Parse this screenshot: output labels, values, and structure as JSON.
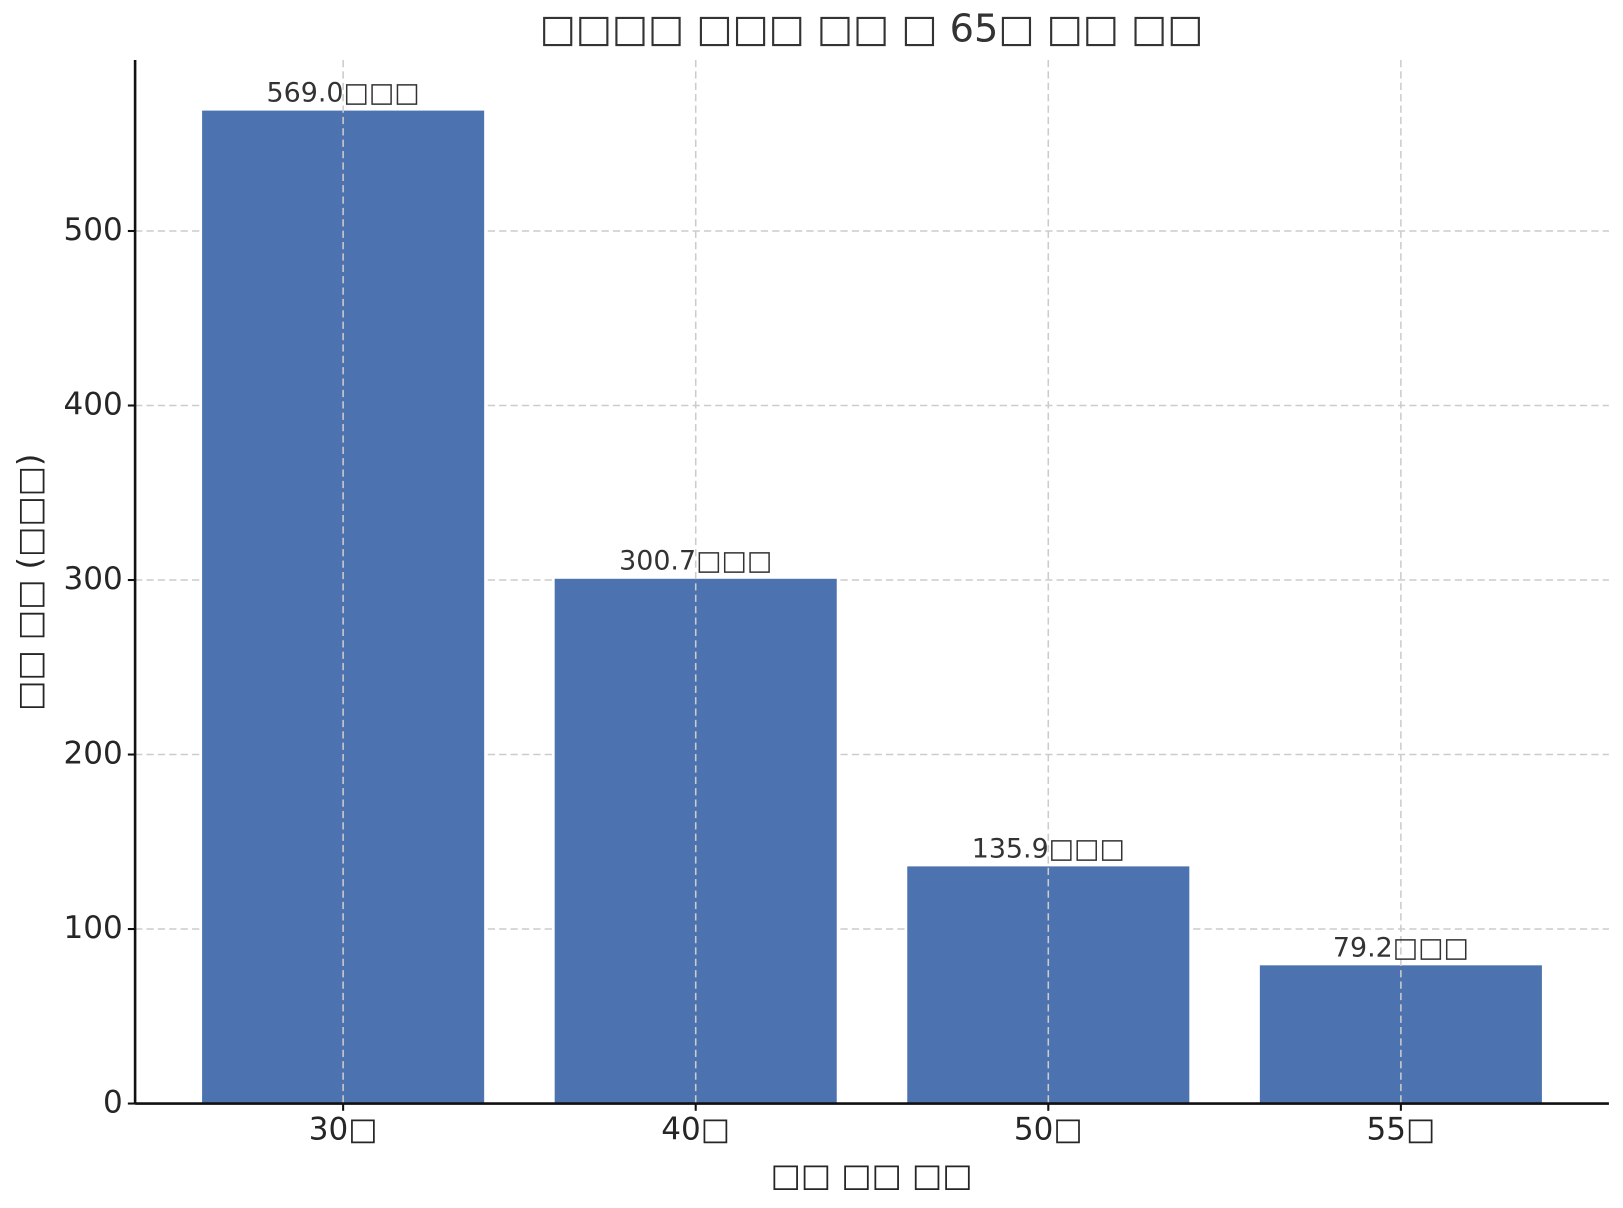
{
  "chart_data": {
    "type": "bar",
    "title": "□□□□ □□□ □□ □ 65□ □□ □□",
    "x_label": "□□ □□ □□",
    "y_label": "□□ □□ (□□□)",
    "categories": [
      "30□",
      "40□",
      "50□",
      "55□"
    ],
    "values": [
      569.0,
      300.7,
      135.9,
      79.2
    ],
    "value_labels": [
      "569.0□□□",
      "300.7□□□",
      "135.9□□□",
      "79.2□□□"
    ],
    "color": "#4c72b0",
    "ylim": [
      0,
      598
    ],
    "yticks": [
      0,
      100,
      200,
      300,
      400,
      500
    ],
    "grid": true
  }
}
